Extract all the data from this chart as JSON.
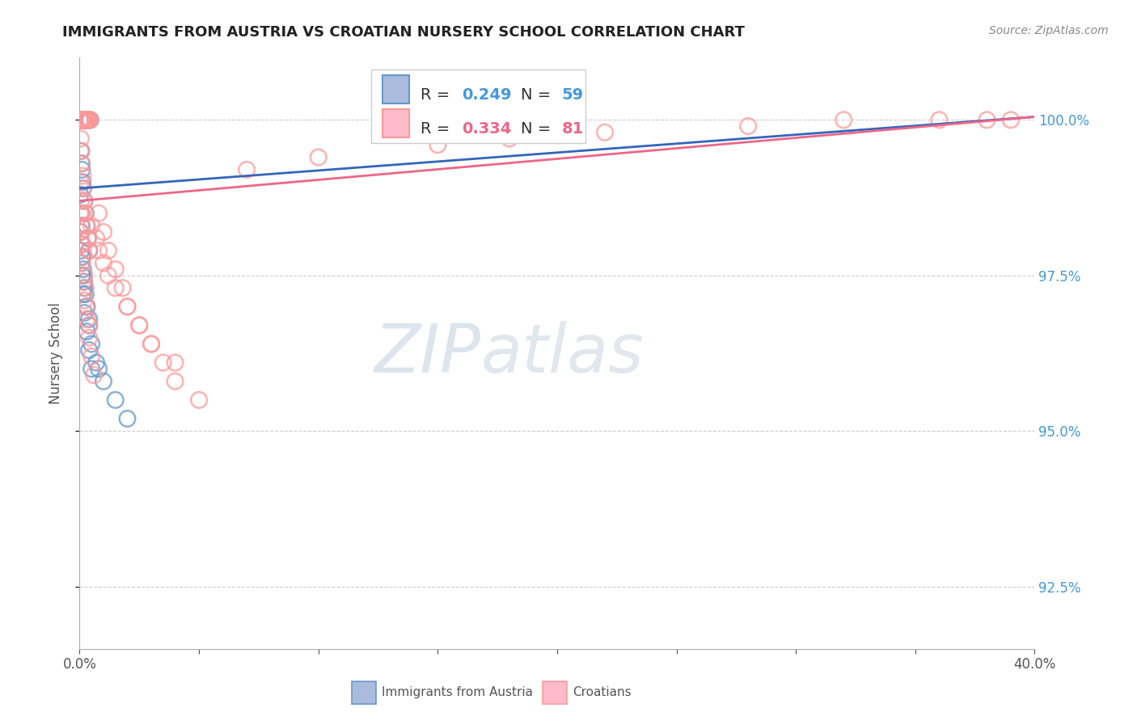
{
  "title": "IMMIGRANTS FROM AUSTRIA VS CROATIAN NURSERY SCHOOL CORRELATION CHART",
  "source": "Source: ZipAtlas.com",
  "ylabel": "Nursery School",
  "yticks": [
    92.5,
    95.0,
    97.5,
    100.0
  ],
  "ytick_labels": [
    "92.5%",
    "95.0%",
    "97.5%",
    "100.0%"
  ],
  "legend_austria_label": "Immigrants from Austria",
  "legend_croatians_label": "Croatians",
  "legend_R_austria": "0.249",
  "legend_N_austria": "59",
  "legend_R_croatians": "0.334",
  "legend_N_croatians": "81",
  "austria_color": "#6699CC",
  "croatian_color": "#FF9999",
  "austria_line_color": "#3366BB",
  "croatian_line_color": "#EE6688",
  "background_color": "#FFFFFF",
  "watermark_zip": "ZIP",
  "watermark_atlas": "atlas",
  "austria_x": [
    0.0002,
    0.0003,
    0.0004,
    0.0005,
    0.0006,
    0.0007,
    0.0008,
    0.0009,
    0.001,
    0.0012,
    0.0015,
    0.0017,
    0.002,
    0.0022,
    0.0025,
    0.003,
    0.0033,
    0.0035,
    0.004,
    0.0045,
    0.0005,
    0.0008,
    0.001,
    0.0013,
    0.0015,
    0.002,
    0.0025,
    0.003,
    0.0035,
    0.004,
    0.0003,
    0.0005,
    0.0007,
    0.001,
    0.0012,
    0.0015,
    0.002,
    0.0025,
    0.003,
    0.004,
    0.0004,
    0.0006,
    0.0008,
    0.001,
    0.0015,
    0.002,
    0.003,
    0.004,
    0.005,
    0.001,
    0.0015,
    0.002,
    0.003,
    0.004,
    0.005,
    0.007,
    0.008,
    0.01,
    0.015,
    0.02
  ],
  "austria_y": [
    100.0,
    100.0,
    100.0,
    100.0,
    100.0,
    100.0,
    100.0,
    100.0,
    100.0,
    100.0,
    100.0,
    100.0,
    100.0,
    100.0,
    100.0,
    100.0,
    100.0,
    100.0,
    100.0,
    100.0,
    99.5,
    99.3,
    99.2,
    99.0,
    98.9,
    98.7,
    98.5,
    98.3,
    98.1,
    97.9,
    98.8,
    98.5,
    98.3,
    98.0,
    97.8,
    97.6,
    97.4,
    97.2,
    97.0,
    96.8,
    98.2,
    97.9,
    97.7,
    97.5,
    97.2,
    96.9,
    96.6,
    96.3,
    96.0,
    97.8,
    97.5,
    97.3,
    97.0,
    96.7,
    96.4,
    96.1,
    96.0,
    95.8,
    95.5,
    95.2
  ],
  "croatian_x": [
    0.0002,
    0.0003,
    0.0004,
    0.0005,
    0.0006,
    0.0007,
    0.0008,
    0.0009,
    0.001,
    0.0012,
    0.0015,
    0.0017,
    0.002,
    0.0022,
    0.0025,
    0.003,
    0.0033,
    0.0035,
    0.004,
    0.0045,
    0.0005,
    0.0008,
    0.001,
    0.0013,
    0.0015,
    0.002,
    0.0025,
    0.003,
    0.0035,
    0.004,
    0.0004,
    0.0006,
    0.0008,
    0.001,
    0.0012,
    0.0015,
    0.002,
    0.0025,
    0.003,
    0.004,
    0.0003,
    0.0005,
    0.0007,
    0.001,
    0.0015,
    0.002,
    0.003,
    0.004,
    0.005,
    0.006,
    0.005,
    0.007,
    0.008,
    0.01,
    0.012,
    0.015,
    0.02,
    0.025,
    0.03,
    0.04,
    0.07,
    0.1,
    0.15,
    0.18,
    0.22,
    0.28,
    0.32,
    0.36,
    0.38,
    0.39,
    0.008,
    0.01,
    0.012,
    0.015,
    0.018,
    0.02,
    0.025,
    0.03,
    0.035,
    0.04,
    0.05
  ],
  "croatian_y": [
    100.0,
    100.0,
    100.0,
    100.0,
    100.0,
    100.0,
    100.0,
    100.0,
    100.0,
    100.0,
    100.0,
    100.0,
    100.0,
    100.0,
    100.0,
    100.0,
    100.0,
    100.0,
    100.0,
    100.0,
    99.7,
    99.5,
    99.3,
    99.1,
    98.9,
    98.7,
    98.5,
    98.3,
    98.1,
    97.9,
    99.0,
    98.7,
    98.5,
    98.3,
    98.0,
    97.8,
    97.5,
    97.3,
    97.0,
    96.7,
    98.5,
    98.2,
    98.0,
    97.7,
    97.4,
    97.1,
    96.8,
    96.5,
    96.2,
    95.9,
    98.3,
    98.1,
    97.9,
    97.7,
    97.5,
    97.3,
    97.0,
    96.7,
    96.4,
    96.1,
    99.2,
    99.4,
    99.6,
    99.7,
    99.8,
    99.9,
    100.0,
    100.0,
    100.0,
    100.0,
    98.5,
    98.2,
    97.9,
    97.6,
    97.3,
    97.0,
    96.7,
    96.4,
    96.1,
    95.8,
    95.5
  ]
}
